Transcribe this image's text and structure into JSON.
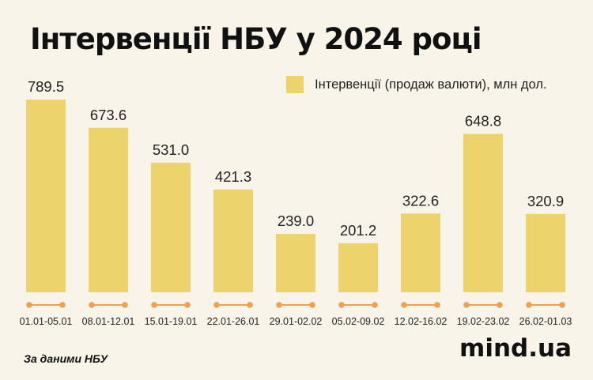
{
  "title": "Інтервенції НБУ у 2024 році",
  "legend": {
    "label": "Інтервенції (продаж валюти), млн дол."
  },
  "source": "За даними НБУ",
  "brand": "mind.ua",
  "colors": {
    "bar": "#ecd36c",
    "marker": "#f0a050",
    "background": "#f9f4ea",
    "text": "#222222"
  },
  "chart_data": {
    "type": "bar",
    "categories": [
      "01.01-05.01",
      "08.01-12.01",
      "15.01-19.01",
      "22.01-26.01",
      "29.01-02.02",
      "05.02-09.02",
      "12.02-16.02",
      "19.02-23.02",
      "26.02-01.03"
    ],
    "series": [
      {
        "name": "Інтервенції (продаж валюти), млн дол.",
        "values": [
          789.5,
          673.6,
          531.0,
          421.3,
          239.0,
          201.2,
          322.6,
          648.8,
          320.9
        ]
      }
    ],
    "value_labels": [
      "789.5",
      "673.6",
      "531.0",
      "421.3",
      "239.0",
      "201.2",
      "322.6",
      "648.8",
      "320.9"
    ],
    "ylim": [
      0,
      789.5
    ],
    "grid": false,
    "legend_position": "top-right"
  }
}
